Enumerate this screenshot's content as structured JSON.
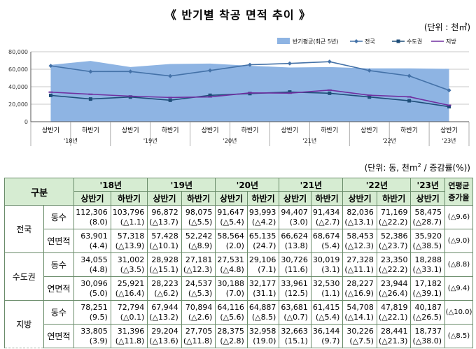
{
  "title": "《 반기별 착공 면적 추이 》",
  "unit_chart": "(단위 : 천㎡)",
  "unit_table_prefix": "(단위: 동, 천m",
  "unit_table_sup": "2",
  "unit_table_suffix": " / 증감률(%))",
  "colors": {
    "area": "#8eb4e3",
    "national": "#4472a8",
    "capital": "#1f4e79",
    "regional": "#7030a0",
    "header_bg": "#d6ecd2",
    "border": "#6a8c6a"
  },
  "chart_data": {
    "type": "line",
    "categories": [
      "상반기",
      "하반기",
      "상반기",
      "하반기",
      "상반기",
      "하반기",
      "상반기",
      "하반기",
      "상반기",
      "하반기",
      "상반기"
    ],
    "year_labels": [
      "'18년",
      "'19년",
      "'20년",
      "'21년",
      "'22년",
      "'23년"
    ],
    "ylim": [
      0,
      80000
    ],
    "yticks": [
      "0",
      "20,000",
      "40,000",
      "60,000",
      "80,000"
    ],
    "grid": true,
    "legend_position": "top-right",
    "area_series": {
      "name": "반기평균(최근 5년)",
      "values": [
        65000,
        69500,
        62500,
        66000,
        66500,
        64000,
        62000,
        62500,
        61000,
        61000,
        60500
      ]
    },
    "series": [
      {
        "name": "전국",
        "values": [
          63901,
          57318,
          57428,
          52242,
          58564,
          65135,
          66624,
          68674,
          58453,
          52386,
          35920
        ]
      },
      {
        "name": "수도권",
        "values": [
          30096,
          25921,
          28223,
          24537,
          30188,
          32177,
          33961,
          32530,
          28227,
          23944,
          17182
        ]
      },
      {
        "name": "지방",
        "values": [
          33805,
          31396,
          29204,
          27705,
          28375,
          32958,
          32663,
          36144,
          30226,
          28441,
          18737
        ]
      }
    ]
  },
  "table": {
    "header_gubun": "구분",
    "years": [
      "'18년",
      "'19년",
      "'20년",
      "'21년",
      "'22년",
      "'23년"
    ],
    "halves": [
      "상반기",
      "하반기",
      "상반기",
      "하반기",
      "상반기",
      "하반기",
      "상반기",
      "하반기",
      "상반기",
      "하반기",
      "상반기"
    ],
    "cagr_header": "연평균 증가율",
    "rows": [
      {
        "region": "전국",
        "metric": "동수",
        "values": [
          "112,306",
          "103,796",
          "96,872",
          "98,075",
          "91,647",
          "93,993",
          "94,407",
          "91,434",
          "82,036",
          "71,169",
          "58,475"
        ],
        "rates": [
          "(8.0)",
          "(△1.1)",
          "(△13.7)",
          "(△5.5)",
          "(△5.4)",
          "(△4.2)",
          "(3.0)",
          "(△2.7)",
          "(△13.1)",
          "(△22.2)",
          "(△28.7)"
        ],
        "cagr": "(△9.6)"
      },
      {
        "region": "전국",
        "metric": "연면적",
        "values": [
          "63,901",
          "57,318",
          "57,428",
          "52,242",
          "58,564",
          "65,135",
          "66,624",
          "68,674",
          "58,453",
          "52,386",
          "35,920"
        ],
        "rates": [
          "(4.4)",
          "(△13.9)",
          "(△10.1)",
          "(△8.9)",
          "(2.0)",
          "(24.7)",
          "(13.8)",
          "(5.4)",
          "(△12.3)",
          "(△23.7)",
          "(△38.5)"
        ],
        "cagr": "(△9.0)"
      },
      {
        "region": "수도권",
        "metric": "동수",
        "values": [
          "34,055",
          "31,002",
          "28,928",
          "27,181",
          "27,531",
          "29,106",
          "30,726",
          "30,019",
          "27,328",
          "23,350",
          "18,288"
        ],
        "rates": [
          "(4.8)",
          "(△3.5)",
          "(△15.1)",
          "(△12.3)",
          "(△4.8)",
          "(7.1)",
          "(11.6)",
          "(3.1)",
          "(△11.1)",
          "(△22.2)",
          "(△33.1)"
        ],
        "cagr": "(△8.8)"
      },
      {
        "region": "수도권",
        "metric": "연면적",
        "values": [
          "30,096",
          "25,921",
          "28,223",
          "24,537",
          "30,188",
          "32,177",
          "33,961",
          "32,530",
          "28,227",
          "23,944",
          "17,182"
        ],
        "rates": [
          "(5.0)",
          "(△16.4)",
          "(△6.2)",
          "(△5.3)",
          "(7.0)",
          "(31.1)",
          "(12.5)",
          "(1.1)",
          "(△16.9)",
          "(△26.4)",
          "(△39.1)"
        ],
        "cagr": "(△9.4)"
      },
      {
        "region": "지방",
        "metric": "동수",
        "values": [
          "78,251",
          "72,794",
          "67,944",
          "70,894",
          "64,116",
          "64,887",
          "63,681",
          "61,415",
          "54,708",
          "47,819",
          "40,187"
        ],
        "rates": [
          "(9.5)",
          "(△0.1)",
          "(△13.2)",
          "(△2.6)",
          "(△5.6)",
          "(△8.5)",
          "(△0.7)",
          "(△5.4)",
          "(△14.1)",
          "(△22.1)",
          "(△26.5)"
        ],
        "cagr": "(△10.0)"
      },
      {
        "region": "지방",
        "metric": "연면적",
        "values": [
          "33,805",
          "31,396",
          "29,204",
          "27,705",
          "28,375",
          "32,958",
          "32,663",
          "36,144",
          "30,226",
          "28,441",
          "18,737"
        ],
        "rates": [
          "(3.9)",
          "(△11.8)",
          "(△13.6)",
          "(△11.8)",
          "(△2.8)",
          "(19.0)",
          "(15.1)",
          "(9.7)",
          "(△7.5)",
          "(△21.3)",
          "(△38.0)"
        ],
        "cagr": "(△8.5)"
      }
    ]
  }
}
